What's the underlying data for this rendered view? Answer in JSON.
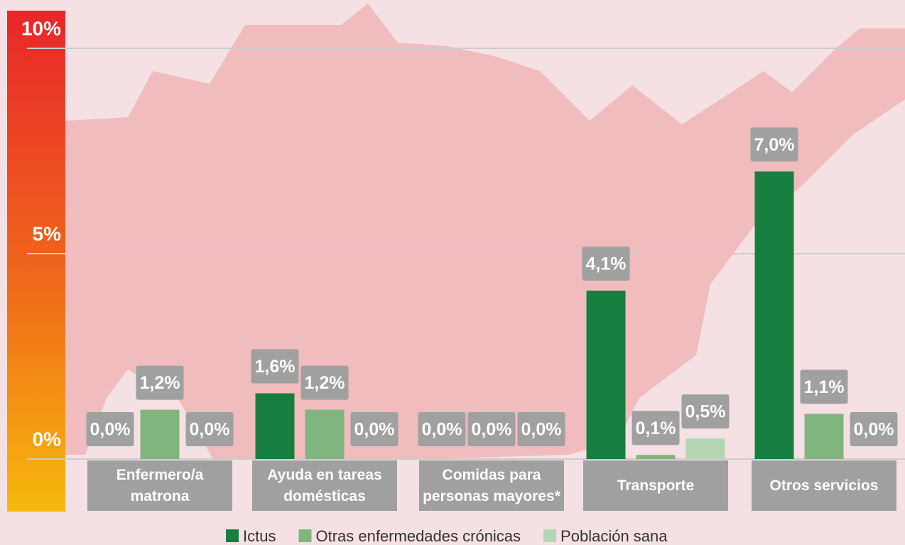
{
  "chart_data": {
    "type": "bar",
    "categories": [
      "Enfermero/a matrona",
      "Ayuda en tareas domésticas",
      "Comidas para personas mayores*",
      "Transporte",
      "Otros servicios"
    ],
    "series": [
      {
        "name": "Ictus",
        "color": "#167f3f",
        "values": [
          0,
          1.6,
          0,
          4.1,
          7.0
        ],
        "value_labels": [
          "0,0%",
          "1,6%",
          "0,0%",
          "4,1%",
          "7,0%"
        ]
      },
      {
        "name": "Otras enfermedades crónicas",
        "color": "#80b57f",
        "values": [
          1.2,
          1.2,
          0,
          0.1,
          1.1
        ],
        "value_labels": [
          "1,2%",
          "1,2%",
          "0,0%",
          "0,1%",
          "1,1%"
        ]
      },
      {
        "name": "Población sana",
        "color": "#b4d6b4",
        "values": [
          0,
          0,
          0,
          0.5,
          0
        ],
        "value_labels": [
          "0,0%",
          "0,0%",
          "0,0%",
          "0,5%",
          "0,0%"
        ]
      }
    ],
    "ylim": [
      0,
      10
    ],
    "yticks": [
      {
        "value": 0,
        "label": "0%"
      },
      {
        "value": 5,
        "label": "5%"
      },
      {
        "value": 10,
        "label": "10%"
      }
    ],
    "grid": true
  }
}
